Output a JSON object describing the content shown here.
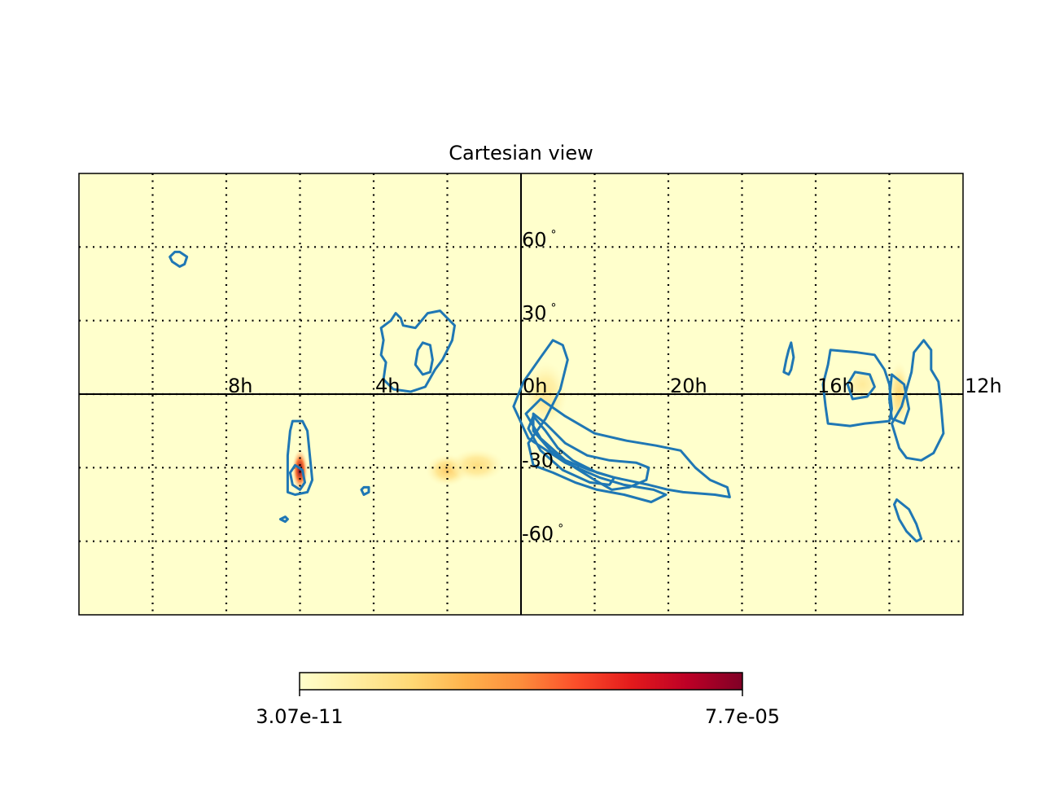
{
  "chart_data": {
    "type": "heatmap",
    "title": "Cartesian view",
    "projection": "cartesian",
    "x_axis": {
      "unit": "hours of right ascension",
      "range": [
        12,
        -12
      ],
      "direction": "decreasing to the right",
      "gridlines_deg": [
        -180,
        -150,
        -120,
        -90,
        -60,
        -30,
        0,
        30,
        60,
        90,
        120,
        150,
        180
      ],
      "tick_labels": [
        {
          "value_h": 8,
          "text": "8h"
        },
        {
          "value_h": 4,
          "text": "4h"
        },
        {
          "value_h": 0,
          "text": "0h"
        },
        {
          "value_h": -4,
          "text": "20h"
        },
        {
          "value_h": -8,
          "text": "16h"
        },
        {
          "value_h": -12,
          "text": "12h"
        }
      ]
    },
    "y_axis": {
      "unit": "degrees declination",
      "range": [
        -90,
        90
      ],
      "gridlines": [
        -60,
        -30,
        0,
        30,
        60
      ],
      "tick_labels": [
        {
          "value": 60,
          "text": "60$^\\circ$",
          "display": "60"
        },
        {
          "value": 30,
          "text": "30$^\\circ$",
          "display": "30"
        },
        {
          "value": -30,
          "text": "-30$^\\circ$",
          "display": "-30"
        },
        {
          "value": -60,
          "text": "-60$^\\circ$",
          "display": "-60"
        }
      ],
      "degree_symbol": "°"
    },
    "grid": true,
    "grid_style": "dotted",
    "background_color": "#ffffcc",
    "contour_color": "#1f77b4",
    "colormap": {
      "name": "YlOrRd",
      "stops": [
        "#ffffcc",
        "#ffeda0",
        "#fed976",
        "#feb24c",
        "#fd8d3c",
        "#fc4e2a",
        "#e31a1c",
        "#bd0026",
        "#800026"
      ],
      "min_label": "3.07e-11",
      "max_label": "7.7e-05"
    },
    "hotspots": [
      {
        "ra_deg": 90,
        "dec_deg": -31,
        "intensity": 1.0,
        "spread_deg": [
          1.5,
          4
        ]
      },
      {
        "ra_deg": 30,
        "dec_deg": -31,
        "intensity": 0.25,
        "spread_deg": [
          4,
          3
        ]
      },
      {
        "ra_deg": 18,
        "dec_deg": -29,
        "intensity": 0.18,
        "spread_deg": [
          5,
          3
        ]
      },
      {
        "ra_deg": -10,
        "dec_deg": 0,
        "intensity": 0.12,
        "spread_deg": [
          4,
          6
        ]
      },
      {
        "ra_deg": -154,
        "dec_deg": 0,
        "intensity": 0.22,
        "spread_deg": [
          2,
          6
        ]
      },
      {
        "ra_deg": -139,
        "dec_deg": 4,
        "intensity": 0.1,
        "spread_deg": [
          3,
          3
        ]
      }
    ],
    "contours": [
      {
        "ra_dec": [
          [
            139,
            58
          ],
          [
            136,
            56
          ],
          [
            137,
            53
          ],
          [
            139,
            52
          ],
          [
            142,
            54
          ],
          [
            143,
            56
          ],
          [
            141,
            58
          ]
        ]
      },
      {
        "ra_dec": [
          [
            51,
            33
          ],
          [
            53,
            30
          ],
          [
            57,
            27
          ],
          [
            56,
            22
          ],
          [
            57,
            16
          ],
          [
            55,
            13
          ],
          [
            56,
            6
          ],
          [
            52,
            2
          ],
          [
            45,
            1
          ],
          [
            39,
            3
          ],
          [
            35,
            10
          ],
          [
            32,
            14
          ],
          [
            28,
            22
          ],
          [
            27,
            28
          ],
          [
            33,
            34
          ],
          [
            38,
            33
          ],
          [
            43,
            27
          ],
          [
            48,
            28
          ],
          [
            49,
            31
          ]
        ]
      },
      {
        "ra_dec": [
          [
            40,
            21
          ],
          [
            42,
            18
          ],
          [
            43,
            12
          ],
          [
            40,
            8
          ],
          [
            37,
            9
          ],
          [
            36,
            14
          ],
          [
            37,
            20
          ]
        ]
      },
      {
        "ra_dec": [
          [
            -13,
            22
          ],
          [
            -17,
            20
          ],
          [
            -19,
            14
          ],
          [
            -16,
            2
          ],
          [
            -10,
            -10
          ],
          [
            -3,
            -20
          ],
          [
            -5,
            -29
          ],
          [
            -13,
            -32
          ],
          [
            -22,
            -36
          ],
          [
            -31,
            -39
          ],
          [
            -42,
            -41
          ],
          [
            -53,
            -44
          ],
          [
            -59,
            -41
          ],
          [
            -54,
            -39
          ],
          [
            -42,
            -37
          ],
          [
            -32,
            -34
          ],
          [
            -18,
            -28
          ],
          [
            -3,
            -18
          ],
          [
            3,
            -5
          ],
          [
            -1,
            5
          ],
          [
            -8,
            15
          ]
        ]
      },
      {
        "ra_dec": [
          [
            -5,
            -9
          ],
          [
            -10,
            -15
          ],
          [
            -15,
            -22
          ],
          [
            -21,
            -27
          ],
          [
            -31,
            -32
          ],
          [
            -38,
            -34
          ],
          [
            -36,
            -37
          ],
          [
            -28,
            -36
          ],
          [
            -17,
            -31
          ],
          [
            -8,
            -23
          ],
          [
            -3,
            -14
          ]
        ]
      },
      {
        "ra_dec": [
          [
            -2,
            -8
          ],
          [
            -8,
            -18
          ],
          [
            -18,
            -27
          ],
          [
            -28,
            -31
          ],
          [
            -38,
            -34
          ],
          [
            -52,
            -37
          ],
          [
            -60,
            -39
          ],
          [
            -66,
            -40
          ],
          [
            -79,
            -41
          ],
          [
            -85,
            -42
          ],
          [
            -84,
            -38
          ],
          [
            -77,
            -35
          ],
          [
            -71,
            -30
          ],
          [
            -65,
            -23
          ],
          [
            -55,
            -21
          ],
          [
            -43,
            -19
          ],
          [
            -30,
            -16
          ],
          [
            -18,
            -9
          ],
          [
            -8,
            -2
          ]
        ]
      },
      {
        "ra_dec": [
          [
            -37,
            -39
          ],
          [
            -44,
            -38
          ],
          [
            -51,
            -35
          ],
          [
            -52,
            -30
          ],
          [
            -47,
            -28
          ],
          [
            -36,
            -27
          ],
          [
            -27,
            -25
          ],
          [
            -18,
            -20
          ],
          [
            -10,
            -12
          ],
          [
            -5,
            -8
          ],
          [
            -5,
            -15
          ],
          [
            -12,
            -23
          ],
          [
            -22,
            -30
          ],
          [
            -30,
            -35
          ]
        ]
      },
      {
        "ra_dec": [
          [
            93,
            -11
          ],
          [
            94,
            -15
          ],
          [
            95,
            -25
          ],
          [
            95,
            -37
          ],
          [
            95,
            -40
          ],
          [
            92,
            -41
          ],
          [
            87,
            -40
          ],
          [
            85,
            -35
          ],
          [
            86,
            -25
          ],
          [
            87,
            -15
          ],
          [
            89,
            -11
          ]
        ]
      },
      {
        "ra_dec": [
          [
            92,
            -29
          ],
          [
            94,
            -32
          ],
          [
            93,
            -37
          ],
          [
            90,
            -39
          ],
          [
            88,
            -36
          ],
          [
            89,
            -31
          ]
        ]
      },
      {
        "ra_dec": [
          [
            64,
            -38
          ],
          [
            65,
            -39
          ],
          [
            64,
            -41
          ],
          [
            62,
            -40
          ],
          [
            62,
            -38
          ]
        ]
      },
      {
        "ra_dec": [
          [
            96,
            -50
          ],
          [
            98,
            -51
          ],
          [
            96,
            -52
          ],
          [
            95,
            -51
          ]
        ]
      },
      {
        "ra_dec": [
          [
            -110,
            21
          ],
          [
            -111,
            15
          ],
          [
            -110,
            10
          ],
          [
            -109,
            8
          ],
          [
            -107,
            9
          ],
          [
            -108,
            14
          ],
          [
            -109,
            18
          ]
        ]
      },
      {
        "ra_dec": [
          [
            -126,
            18
          ],
          [
            -137,
            17
          ],
          [
            -144,
            16
          ],
          [
            -148,
            10
          ],
          [
            -150,
            4
          ],
          [
            -151,
            -6
          ],
          [
            -150,
            -11
          ],
          [
            -140,
            -12
          ],
          [
            -134,
            -13
          ],
          [
            -125,
            -12
          ],
          [
            -124,
            -5
          ],
          [
            -123,
            4
          ],
          [
            -125,
            12
          ]
        ]
      },
      {
        "ra_dec": [
          [
            -136,
            9
          ],
          [
            -142,
            8
          ],
          [
            -144,
            3
          ],
          [
            -141,
            -1
          ],
          [
            -135,
            -2
          ],
          [
            -133,
            4
          ]
        ]
      },
      {
        "ra_dec": [
          [
            -164,
            22
          ],
          [
            -167,
            18
          ],
          [
            -167,
            10
          ],
          [
            -170,
            5
          ],
          [
            -171,
            -4
          ],
          [
            -172,
            -16
          ],
          [
            -168,
            -24
          ],
          [
            -163,
            -27
          ],
          [
            -157,
            -26
          ],
          [
            -154,
            -22
          ],
          [
            -151,
            -12
          ],
          [
            -155,
            -5
          ],
          [
            -159,
            9
          ],
          [
            -160,
            17
          ]
        ]
      },
      {
        "ra_dec": [
          [
            -151,
            8
          ],
          [
            -156,
            4
          ],
          [
            -158,
            -6
          ],
          [
            -156,
            -12
          ],
          [
            -151,
            -10
          ],
          [
            -150,
            -2
          ]
        ]
      },
      {
        "ra_dec": [
          [
            -153,
            -43
          ],
          [
            -158,
            -47
          ],
          [
            -161,
            -53
          ],
          [
            -163,
            -59
          ],
          [
            -161,
            -60
          ],
          [
            -157,
            -56
          ],
          [
            -154,
            -51
          ],
          [
            -152,
            -45
          ]
        ]
      }
    ]
  }
}
